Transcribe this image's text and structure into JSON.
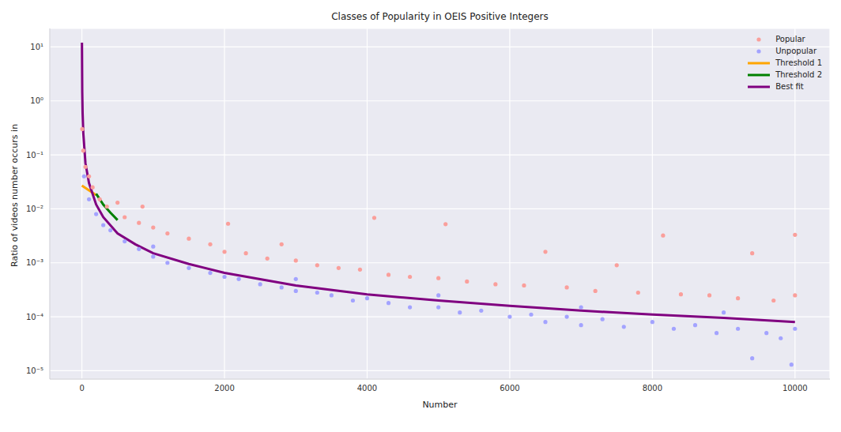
{
  "chart_data": {
    "type": "scatter",
    "title": "Classes of Popularity in OEIS Positive Integers",
    "x_label": "Number",
    "y_label": "Ratio of videos number occurs in",
    "log": "y",
    "grid": true,
    "legend": "upper right",
    "xlim": [
      -450,
      10490
    ],
    "xticks": [
      0,
      2000,
      4000,
      6000,
      8000,
      10000
    ],
    "ylim": [
      7e-06,
      22
    ],
    "yticks": [
      {
        "value": 1e-05,
        "label": "10⁻⁵"
      },
      {
        "value": 0.0001,
        "label": "10⁻⁴"
      },
      {
        "value": 0.001,
        "label": "10⁻³"
      },
      {
        "value": 0.01,
        "label": "10⁻²"
      },
      {
        "value": 0.1,
        "label": "10⁻¹"
      },
      {
        "value": 1,
        "label": "10⁰"
      },
      {
        "value": 10,
        "label": "10¹"
      }
    ],
    "series": [
      {
        "name": "Popular",
        "type": "scatter",
        "marker": "o",
        "color": "#fa9f9b",
        "x": [
          5,
          20,
          50,
          100,
          150,
          250,
          350,
          500,
          600,
          800,
          850,
          1000,
          1200,
          1500,
          1800,
          2000,
          2050,
          2300,
          2600,
          2800,
          3000,
          3300,
          3600,
          3900,
          4100,
          4300,
          4600,
          5000,
          5100,
          5400,
          5800,
          6200,
          6500,
          6800,
          7200,
          7500,
          7800,
          8150,
          8400,
          8800,
          9200,
          9400,
          9700,
          10000,
          10000
        ],
        "values": [
          0.3,
          0.12,
          0.06,
          0.04,
          0.025,
          0.015,
          0.011,
          0.013,
          0.007,
          0.0055,
          0.011,
          0.0045,
          0.0035,
          0.0028,
          0.0022,
          0.0016,
          0.0053,
          0.0015,
          0.0012,
          0.0022,
          0.0011,
          0.0009,
          0.0008,
          0.00075,
          0.0068,
          0.0006,
          0.00055,
          0.00052,
          0.0052,
          0.00045,
          0.0004,
          0.00038,
          0.0016,
          0.00035,
          0.0003,
          0.0009,
          0.00028,
          0.0032,
          0.00026,
          0.00025,
          0.00022,
          0.0015,
          0.0002,
          0.0033,
          0.00025
        ]
      },
      {
        "name": "Unpopular",
        "type": "scatter",
        "marker": "o",
        "color": "#a3a3ff",
        "x": [
          30,
          100,
          200,
          300,
          400,
          600,
          800,
          1000,
          1000,
          1200,
          1500,
          1800,
          2000,
          2200,
          2500,
          2800,
          3000,
          3000,
          3300,
          3500,
          3800,
          4000,
          4300,
          4600,
          5000,
          5000,
          5300,
          5600,
          6000,
          6300,
          6500,
          6800,
          7000,
          7000,
          7300,
          7600,
          8000,
          8300,
          8600,
          8900,
          9000,
          9200,
          9400,
          9600,
          9800,
          9950,
          10000
        ],
        "values": [
          0.04,
          0.015,
          0.008,
          0.005,
          0.004,
          0.0025,
          0.0018,
          0.0013,
          0.002,
          0.001,
          0.0008,
          0.00065,
          0.00055,
          0.0005,
          0.0004,
          0.00035,
          0.0003,
          0.0005,
          0.00028,
          0.00025,
          0.0002,
          0.00022,
          0.00018,
          0.00015,
          0.00015,
          0.00025,
          0.00012,
          0.00013,
          0.0001,
          0.00011,
          8e-05,
          0.0001,
          7e-05,
          0.00015,
          9e-05,
          6.5e-05,
          8e-05,
          6e-05,
          7e-05,
          5e-05,
          0.00012,
          6e-05,
          1.7e-05,
          5e-05,
          4e-05,
          1.3e-05,
          6e-05
        ]
      },
      {
        "name": "Threshold 1",
        "type": "line",
        "line_style": "solid",
        "color": "#ffa500",
        "x": [
          0,
          100,
          200
        ],
        "values": [
          0.027,
          0.022,
          0.018
        ]
      },
      {
        "name": "Threshold 2",
        "type": "line",
        "line_style": "solid",
        "color": "#008000",
        "x": [
          200,
          300,
          400,
          500
        ],
        "values": [
          0.019,
          0.012,
          0.0085,
          0.0062
        ]
      },
      {
        "name": "Best fit",
        "type": "line",
        "line_style": "solid",
        "color": "#800080",
        "x": [
          1,
          5,
          10,
          20,
          50,
          100,
          200,
          300,
          500,
          750,
          1000,
          1500,
          2000,
          3000,
          4000,
          5000,
          6000,
          7000,
          8000,
          9000,
          10000
        ],
        "values": [
          12,
          1.5,
          0.6,
          0.25,
          0.07,
          0.03,
          0.012,
          0.007,
          0.0035,
          0.0022,
          0.0015,
          0.00095,
          0.00065,
          0.00038,
          0.00026,
          0.0002,
          0.00016,
          0.00013,
          0.00011,
          9.5e-05,
          8e-05
        ]
      }
    ]
  }
}
